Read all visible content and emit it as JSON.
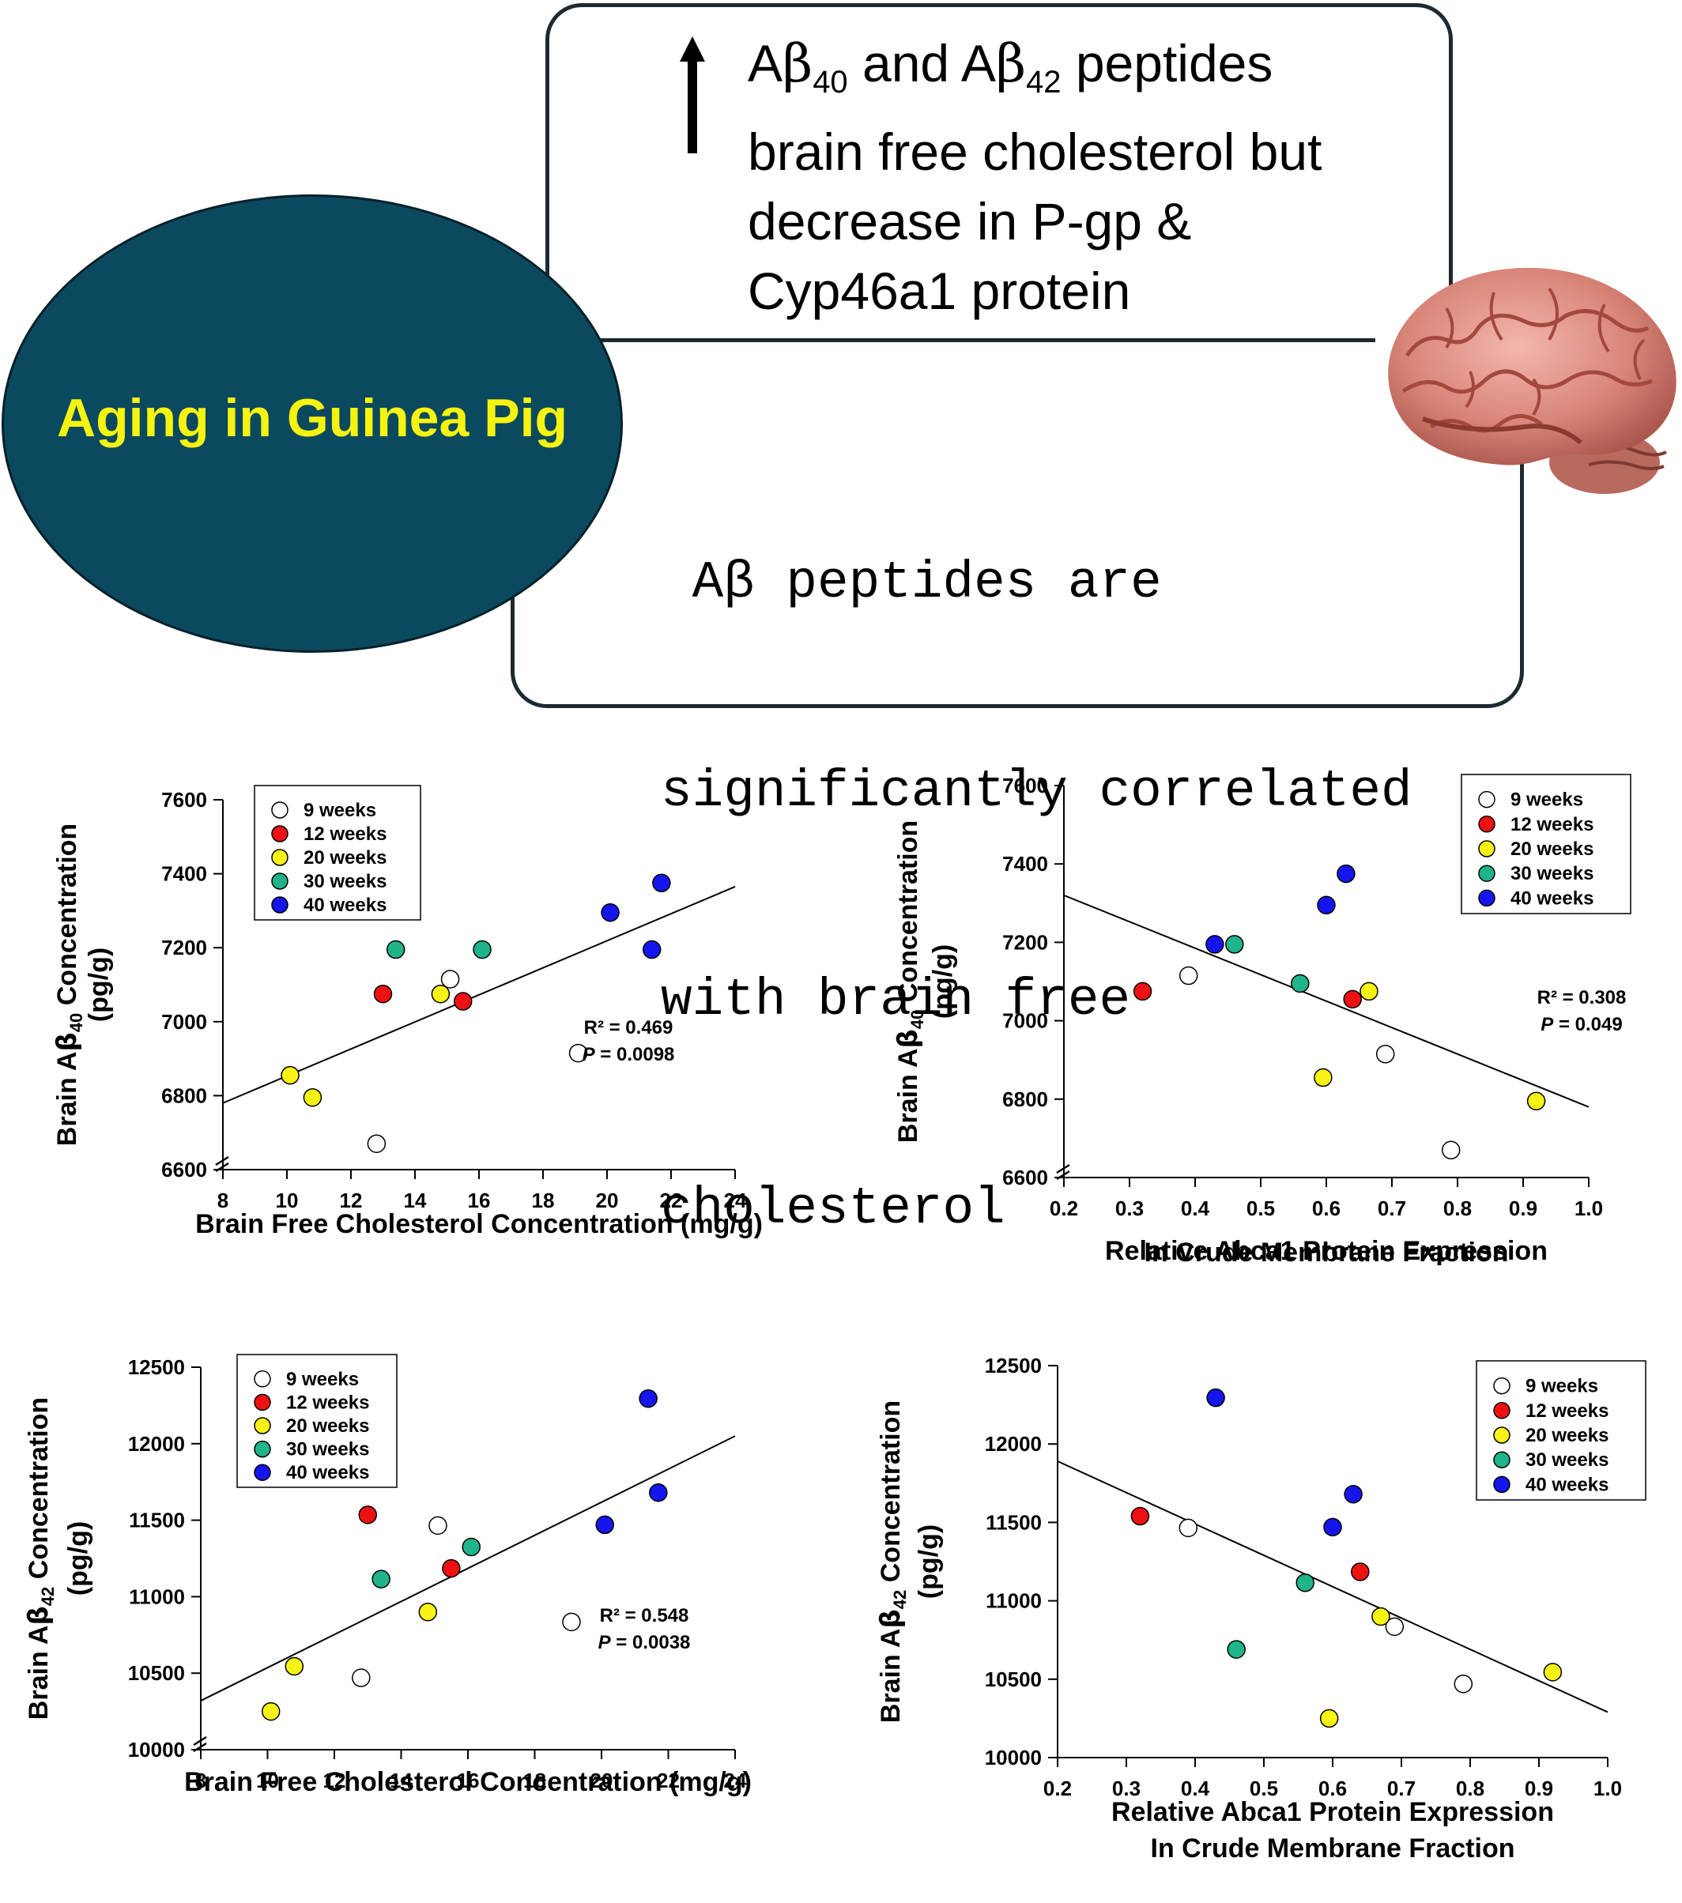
{
  "header": {
    "oval_label": "Aging in Guinea Pig",
    "box1_lines": [
      {
        "pre": "A",
        "greek": "β",
        "sub": "40",
        "mid": " and A",
        "greek2": "β",
        "sub2": "42",
        "post": " peptides"
      },
      {
        "pre": "brain free cholesterol but"
      },
      {
        "pre": "decrease in P-gp &"
      },
      {
        "pre": "Cyp46a1 protein"
      }
    ],
    "box2_lines": [
      " Aβ peptides are",
      "significantly correlated",
      "with brain free",
      "cholesterol"
    ],
    "arrow_icon": "up-arrow-icon",
    "brain_icon": "brain-icon"
  },
  "legend_labels": [
    "9 weeks",
    "12 weeks",
    "20 weeks",
    "30 weeks",
    "40 weeks"
  ],
  "group_colors": [
    "#ffffff",
    "#ee1111",
    "#f7f314",
    "#1fb489",
    "#1515ee"
  ],
  "chart_data": [
    {
      "type": "scatter",
      "id": "a40-cholesterol",
      "ylabel": "Brain Aβ40 Concentration (pg/g)",
      "ylabel_parts": {
        "l1_pre": "Brain A",
        "greek": "β",
        "sub": "40",
        "l1_post": " Concentration",
        "l2": "(pg/g)"
      },
      "xlabel_lines": [
        "Brain Free Cholesterol Concentration (mg/g)"
      ],
      "xlim": [
        8,
        24
      ],
      "ylim": [
        6600,
        7600
      ],
      "xticks": [
        "8",
        "10",
        "12",
        "14",
        "16",
        "18",
        "20",
        "22",
        "24"
      ],
      "yticks": [
        "6600",
        "6800",
        "7000",
        "7200",
        "7400",
        "7600"
      ],
      "axis_break": true,
      "legend_position": "top-left",
      "stats": {
        "r2": "R² = 0.469",
        "p_label": "P",
        "p_value": " = 0.0098"
      },
      "trendline": [
        [
          8,
          6780
        ],
        [
          24,
          7365
        ]
      ],
      "groups": [
        {
          "name": "9 weeks",
          "points": [
            [
              12.8,
              6670
            ],
            [
              15.1,
              7115
            ],
            [
              19.1,
              6915
            ]
          ]
        },
        {
          "name": "12 weeks",
          "points": [
            [
              13.0,
              7075
            ],
            [
              15.5,
              7055
            ]
          ]
        },
        {
          "name": "20 weeks",
          "points": [
            [
              10.1,
              6855
            ],
            [
              10.8,
              6795
            ],
            [
              14.8,
              7075
            ]
          ]
        },
        {
          "name": "30 weeks",
          "points": [
            [
              13.4,
              7195
            ],
            [
              16.1,
              7195
            ]
          ]
        },
        {
          "name": "40 weeks",
          "points": [
            [
              20.1,
              7295
            ],
            [
              21.4,
              7195
            ],
            [
              21.7,
              7375
            ]
          ]
        }
      ]
    },
    {
      "type": "scatter",
      "id": "a40-abca1",
      "ylabel": "Brain Aβ40 Concentration (pg/g)",
      "ylabel_parts": {
        "l1_pre": "Brain A",
        "greek": "β",
        "sub": "40",
        "l1_post": " Concentration",
        "l2": "(pg/g)"
      },
      "xlabel_lines": [
        "Relative Abca1 Protein Expression",
        "In Crude Membrane Fraction"
      ],
      "xlim": [
        0.2,
        1.0
      ],
      "ylim": [
        6600,
        7600
      ],
      "xticks": [
        "0.2",
        "0.3",
        "0.4",
        "0.5",
        "0.6",
        "0.7",
        "0.8",
        "0.9",
        "1.0"
      ],
      "yticks": [
        "6600",
        "6800",
        "7000",
        "7200",
        "7400",
        "7600"
      ],
      "axis_break": true,
      "legend_position": "top-right",
      "stats": {
        "r2": "R² = 0.308",
        "p_label": "P",
        "p_value": " = 0.049"
      },
      "trendline": [
        [
          0.2,
          7320
        ],
        [
          1.0,
          6780
        ]
      ],
      "groups": [
        {
          "name": "9 weeks",
          "points": [
            [
              0.39,
              7115
            ],
            [
              0.69,
              6915
            ],
            [
              0.79,
              6670
            ]
          ]
        },
        {
          "name": "12 weeks",
          "points": [
            [
              0.32,
              7075
            ],
            [
              0.64,
              7055
            ]
          ]
        },
        {
          "name": "20 weeks",
          "points": [
            [
              0.595,
              6855
            ],
            [
              0.665,
              7075
            ],
            [
              0.92,
              6795
            ]
          ]
        },
        {
          "name": "30 weeks",
          "points": [
            [
              0.46,
              7195
            ],
            [
              0.56,
              7095
            ]
          ]
        },
        {
          "name": "40 weeks",
          "points": [
            [
              0.43,
              7195
            ],
            [
              0.6,
              7295
            ],
            [
              0.63,
              7375
            ]
          ]
        }
      ]
    },
    {
      "type": "scatter",
      "id": "a42-cholesterol",
      "ylabel": "Brain Aβ42 Concentration (pg/g)",
      "ylabel_parts": {
        "l1_pre": "Brain A",
        "greek": "β",
        "sub": "42",
        "l1_post": " Concentration",
        "l2": "(pg/g)"
      },
      "xlabel_lines": [
        "Brain Free Cholesterol Concentration (mg/g)"
      ],
      "xlim": [
        8,
        24
      ],
      "ylim": [
        10000,
        12500
      ],
      "xticks": [
        "8",
        "10",
        "12",
        "14",
        "16",
        "18",
        "20",
        "22",
        "24"
      ],
      "yticks": [
        "10000",
        "10500",
        "11000",
        "11500",
        "12000",
        "12500"
      ],
      "axis_break": true,
      "legend_position": "top-left",
      "stats": {
        "r2": "R² = 0.548",
        "p_label": "P",
        "p_value": " = 0.0038"
      },
      "trendline": [
        [
          8,
          10320
        ],
        [
          24,
          12050
        ]
      ],
      "groups": [
        {
          "name": "9 weeks",
          "points": [
            [
              12.8,
              10470
            ],
            [
              15.1,
              11465
            ],
            [
              19.1,
              10835
            ]
          ]
        },
        {
          "name": "12 weeks",
          "points": [
            [
              13.0,
              11535
            ],
            [
              15.5,
              11185
            ]
          ]
        },
        {
          "name": "20 weeks",
          "points": [
            [
              10.1,
              10250
            ],
            [
              10.8,
              10545
            ],
            [
              14.8,
              10900
            ]
          ]
        },
        {
          "name": "30 weeks",
          "points": [
            [
              13.4,
              11115
            ],
            [
              16.1,
              11325
            ]
          ]
        },
        {
          "name": "40 weeks",
          "points": [
            [
              20.1,
              11470
            ],
            [
              21.4,
              12295
            ],
            [
              21.7,
              11680
            ]
          ]
        }
      ]
    },
    {
      "type": "scatter",
      "id": "a42-abca1",
      "ylabel": "Brain Aβ42 Concentration (pg/g)",
      "ylabel_parts": {
        "l1_pre": "Brain A",
        "greek": "β",
        "sub": "42",
        "l1_post": " Concentration",
        "l2": "(pg/g)"
      },
      "xlabel_lines": [
        "Relative Abca1 Protein Expression",
        "In Crude Membrane Fraction"
      ],
      "xlim": [
        0.2,
        1.0
      ],
      "ylim": [
        10000,
        12500
      ],
      "xticks": [
        "0.2",
        "0.3",
        "0.4",
        "0.5",
        "0.6",
        "0.7",
        "0.8",
        "0.9",
        "1.0"
      ],
      "yticks": [
        "10000",
        "10500",
        "11000",
        "11500",
        "12000",
        "12500"
      ],
      "axis_break": false,
      "legend_position": "top-right",
      "stats": null,
      "trendline": [
        [
          0.2,
          11890
        ],
        [
          1.0,
          10290
        ]
      ],
      "groups": [
        {
          "name": "9 weeks",
          "points": [
            [
              0.39,
              11465
            ],
            [
              0.69,
              10835
            ],
            [
              0.79,
              10470
            ]
          ]
        },
        {
          "name": "12 weeks",
          "points": [
            [
              0.32,
              11540
            ],
            [
              0.64,
              11185
            ]
          ]
        },
        {
          "name": "20 weeks",
          "points": [
            [
              0.595,
              10250
            ],
            [
              0.67,
              10900
            ],
            [
              0.92,
              10545
            ]
          ]
        },
        {
          "name": "30 weeks",
          "points": [
            [
              0.46,
              10690
            ],
            [
              0.56,
              11115
            ]
          ]
        },
        {
          "name": "40 weeks",
          "points": [
            [
              0.43,
              12295
            ],
            [
              0.6,
              11470
            ],
            [
              0.63,
              11680
            ]
          ]
        }
      ]
    }
  ]
}
